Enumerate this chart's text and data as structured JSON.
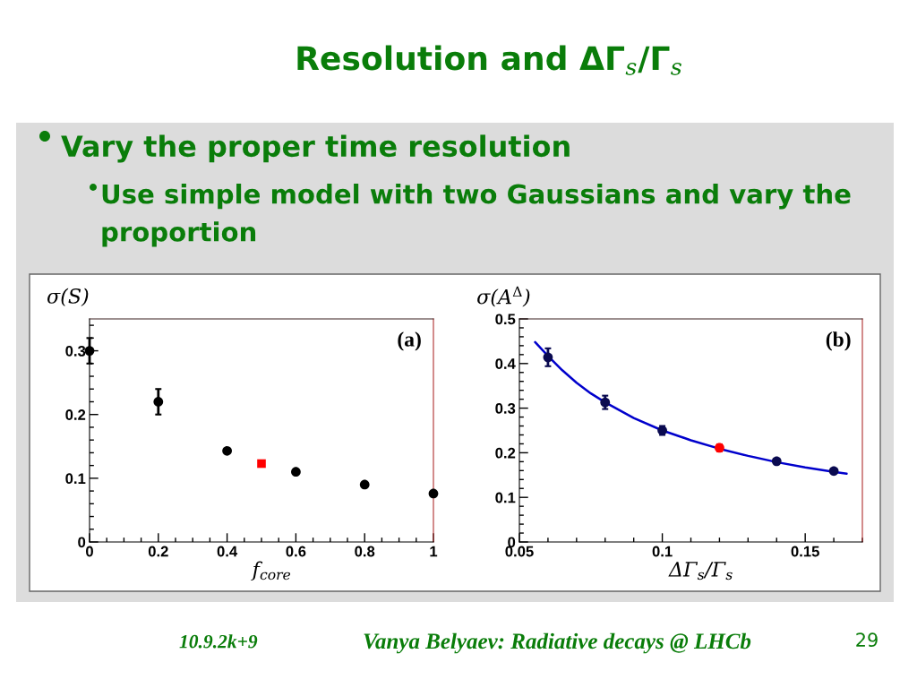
{
  "chart_data": [
    {
      "type": "other",
      "title": "Resolution and ΔΓ$_{s}$/Γ$_{s}$",
      "annotations": [
        "Vary the proper time resolution",
        "Use simple model with two Gaussians and vary the proportion",
        "10.9.2k+9",
        "Vanya Belyaev: Radiative decays @ LHCb",
        "29"
      ]
    },
    {
      "type": "scatter",
      "xlabel": "f$_{core}$",
      "ylabel": "σ(S)",
      "annotations": [
        "(a)"
      ],
      "xlim": [
        0,
        1
      ],
      "ylim": [
        0,
        0.35
      ],
      "xticks": [
        0,
        0.2,
        0.4,
        0.6,
        0.8,
        1
      ],
      "yticks": [
        0,
        0.1,
        0.2,
        0.3
      ],
      "series": [
        {
          "color": "#000000",
          "marker": "circle",
          "x": [
            0,
            0.2,
            0.4,
            0.6,
            0.8,
            1
          ],
          "values": [
            0.3,
            0.22,
            0.143,
            0.11,
            0.09,
            0.076
          ],
          "errors": [
            0.02,
            0.02,
            null,
            null,
            null,
            null
          ]
        },
        {
          "color": "#ff0000",
          "marker": "square",
          "x": [
            0.5
          ],
          "values": [
            0.123
          ]
        }
      ]
    },
    {
      "type": "scatter",
      "xlabel": "ΔΓ$_{s}$/Γ$_{s}$",
      "ylabel": "σ(A$^{Δ}$)",
      "annotations": [
        "(b)"
      ],
      "xlim": [
        0.05,
        0.17
      ],
      "ylim": [
        0,
        0.5
      ],
      "xticks": [
        0.05,
        0.1,
        0.15
      ],
      "yticks": [
        0,
        0.1,
        0.2,
        0.3,
        0.4,
        0.5
      ],
      "series": [
        {
          "type": "line",
          "color": "#0000cc",
          "marker": "none",
          "line_style": "solid",
          "x": [
            0.0555,
            0.06,
            0.065,
            0.07,
            0.075,
            0.08,
            0.09,
            0.1,
            0.11,
            0.12,
            0.13,
            0.14,
            0.15,
            0.16,
            0.1645
          ],
          "values": [
            0.448,
            0.417,
            0.385,
            0.357,
            0.333,
            0.313,
            0.278,
            0.25,
            0.228,
            0.209,
            0.193,
            0.179,
            0.167,
            0.157,
            0.153
          ]
        },
        {
          "color": "#0a0a50",
          "marker": "circle",
          "x": [
            0.06,
            0.08,
            0.1,
            0.14,
            0.16
          ],
          "values": [
            0.414,
            0.313,
            0.25,
            0.181,
            0.159
          ],
          "errors": [
            0.02,
            0.015,
            0.01,
            null,
            null
          ]
        },
        {
          "color": "#ff0000",
          "marker": "circle",
          "x": [
            0.12
          ],
          "values": [
            0.211
          ],
          "errors": [
            0.008
          ]
        }
      ]
    }
  ]
}
